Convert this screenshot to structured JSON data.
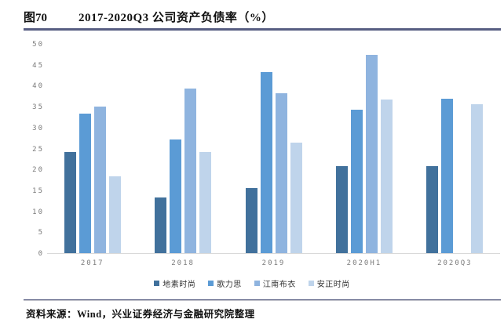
{
  "figure": {
    "tag": "图70",
    "title": "2017-2020Q3 公司资产负债率（%）"
  },
  "source_note": "资料来源：Wind，兴业证券经济与金融研究院整理",
  "colors": {
    "rule": "#575d82",
    "axis_line": "#d9d9d9",
    "tick_text": "#7a7a7a",
    "series": [
      "#41719c",
      "#5b9bd5",
      "#8fb4df",
      "#bfd4eb"
    ]
  },
  "chart_data": {
    "type": "bar",
    "title": "2017-2020Q3 公司资产负债率（%）",
    "categories": [
      "2017",
      "2018",
      "2019",
      "2020H1",
      "2020Q3"
    ],
    "series": [
      {
        "name": "地素时尚",
        "color": "#41719c",
        "values": [
          24.3,
          13.4,
          15.6,
          20.9,
          20.9
        ]
      },
      {
        "name": "歌力思",
        "color": "#5b9bd5",
        "values": [
          33.4,
          27.2,
          43.4,
          34.4,
          37.0
        ]
      },
      {
        "name": "江南布衣",
        "color": "#8fb4df",
        "values": [
          35.1,
          39.5,
          38.4,
          47.6,
          null
        ]
      },
      {
        "name": "安正时尚",
        "color": "#bfd4eb",
        "values": [
          18.4,
          24.3,
          26.6,
          36.8,
          35.7
        ]
      }
    ],
    "xlabel": "",
    "ylabel": "",
    "ylim": [
      0,
      50
    ],
    "yticks": [
      0,
      5,
      10,
      15,
      20,
      25,
      30,
      35,
      40,
      45,
      50
    ],
    "grid": false,
    "legend_position": "bottom"
  }
}
